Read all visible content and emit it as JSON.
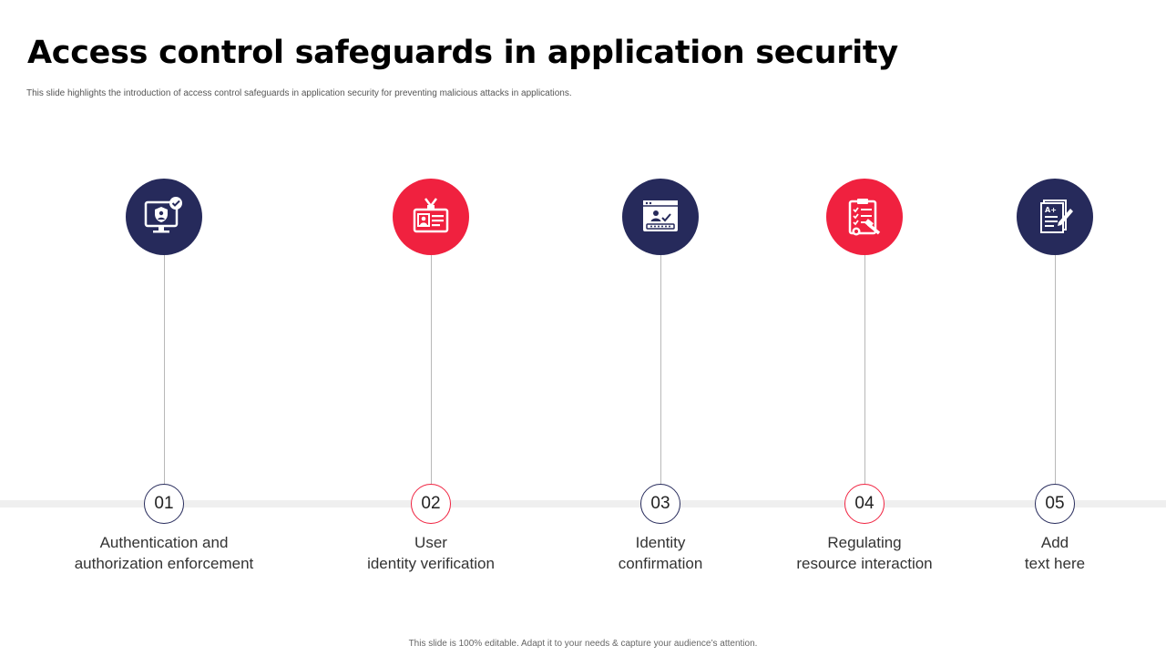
{
  "slide": {
    "title": "Access control safeguards in application security",
    "subtitle": "This slide highlights the introduction of access control safeguards in application security for preventing malicious attacks in applications.",
    "footer": "This slide is 100% editable. Adapt it to your needs & capture your audience’s attention."
  },
  "colors": {
    "navy": "#262a5b",
    "red": "#f0213f",
    "track": "#efefef"
  },
  "steps": [
    {
      "number": "01",
      "line1": "Authentication and",
      "line2": "authorization enforcement",
      "icon": "monitor-user-shield-icon",
      "color": "navy"
    },
    {
      "number": "02",
      "line1": "User",
      "line2": "identity verification",
      "icon": "id-badge-icon",
      "color": "red"
    },
    {
      "number": "03",
      "line1": "Identity",
      "line2": "confirmation",
      "icon": "browser-login-icon",
      "color": "navy"
    },
    {
      "number": "04",
      "line1": "Regulating",
      "line2": "resource interaction",
      "icon": "clipboard-checklist-icon",
      "color": "red"
    },
    {
      "number": "05",
      "line1": "Add",
      "line2": "text here",
      "icon": "graded-document-icon",
      "color": "navy"
    }
  ]
}
